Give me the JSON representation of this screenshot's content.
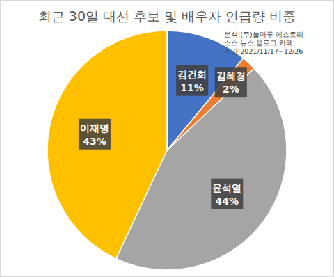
{
  "chart_data": {
    "type": "pie",
    "title": "최근 30일 대선 후보 및 배우자 언급량 비중",
    "annotations": [
      "분석:(주)늘마루 에스토리",
      "소스:뉴스,블로그,카페",
      "기간:2021/11/17~12/26"
    ],
    "categories": [
      "김건희",
      "김혜경",
      "윤석열",
      "이재명"
    ],
    "values": [
      11,
      2,
      44,
      43
    ],
    "value_labels": [
      "11%",
      "2%",
      "44%",
      "43%"
    ],
    "colors": [
      "#4472c4",
      "#ed7d31",
      "#a5a5a5",
      "#ffc000"
    ],
    "data_labels": true
  }
}
